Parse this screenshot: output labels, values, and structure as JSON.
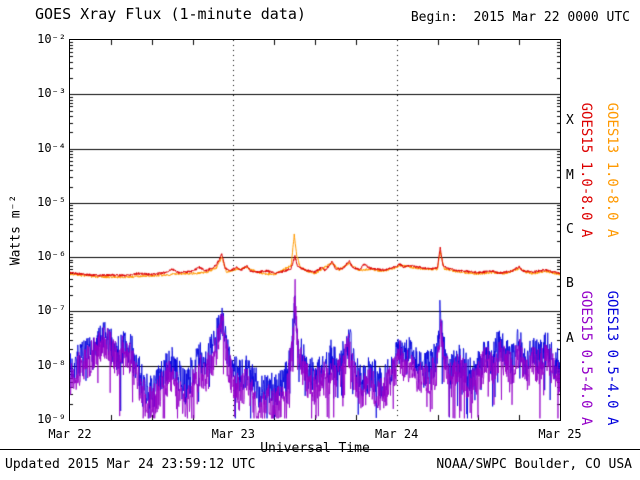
{
  "header": {
    "title": "GOES Xray Flux (1-minute data)",
    "begin": "Begin:  2015 Mar 22 0000 UTC"
  },
  "footer": {
    "updated": "Updated 2015 Mar 24 23:59:12 UTC",
    "source": "NOAA/SWPC Boulder, CO USA"
  },
  "chart_data": {
    "type": "line",
    "title": "GOES Xray Flux (1-minute data)",
    "xlabel": "Universal Time",
    "ylabel": "Watts m⁻²",
    "x_hours_range": [
      0,
      72
    ],
    "y_log_range": [
      -9,
      -2
    ],
    "grid": {
      "horizontal": "solid",
      "vertical": "dotted"
    },
    "x_ticks": [
      {
        "hours": 0,
        "label": "Mar 22",
        "dashed": false
      },
      {
        "hours": 24,
        "label": "Mar 23",
        "dashed": true
      },
      {
        "hours": 48,
        "label": "Mar 24",
        "dashed": true
      },
      {
        "hours": 72,
        "label": "Mar 25",
        "dashed": false
      }
    ],
    "y_ticks": [
      {
        "log": -2,
        "label": "10⁻²"
      },
      {
        "log": -3,
        "label": "10⁻³"
      },
      {
        "log": -4,
        "label": "10⁻⁴"
      },
      {
        "log": -5,
        "label": "10⁻⁵"
      },
      {
        "log": -6,
        "label": "10⁻⁶"
      },
      {
        "log": -7,
        "label": "10⁻⁷"
      },
      {
        "log": -8,
        "label": "10⁻⁸"
      },
      {
        "log": -9,
        "label": "10⁻⁹"
      }
    ],
    "flare_classes": [
      {
        "label": "X",
        "log_center": -3.5
      },
      {
        "label": "M",
        "log_center": -4.5
      },
      {
        "label": "C",
        "log_center": -5.5
      },
      {
        "label": "B",
        "log_center": -6.5
      },
      {
        "label": "A",
        "log_center": -7.5
      }
    ],
    "legend": [
      {
        "label": "GOES15 1.0-8.0 A",
        "color": "#dd0000",
        "col": 0,
        "row": 0
      },
      {
        "label": "GOES13 1.0-8.0 A",
        "color": "#ff9900",
        "col": 1,
        "row": 0
      },
      {
        "label": "GOES15 0.5-4.0 A",
        "color": "#9400c8",
        "col": 0,
        "row": 1
      },
      {
        "label": "GOES13 0.5-4.0 A",
        "color": "#0000dd",
        "col": 1,
        "row": 1
      }
    ],
    "series": [
      {
        "name": "GOES13 0.5-4.0 A",
        "color": "#0000dd",
        "seed": 7,
        "noise": 0.33,
        "dip": 0.05,
        "width": 0.8,
        "points": [
          [
            0,
            8e-09
          ],
          [
            1,
            1.2e-08
          ],
          [
            2,
            1.4e-08
          ],
          [
            3,
            1.6e-08
          ],
          [
            4,
            2.2e-08
          ],
          [
            5,
            3.2e-08
          ],
          [
            6,
            2.4e-08
          ],
          [
            7,
            1.6e-08
          ],
          [
            8,
            2.4e-08
          ],
          [
            9,
            1.8e-08
          ],
          [
            10,
            8e-09
          ],
          [
            11,
            4e-09
          ],
          [
            12,
            3e-09
          ],
          [
            13,
            5e-09
          ],
          [
            14,
            8e-09
          ],
          [
            15,
            1.1e-08
          ],
          [
            16,
            6e-09
          ],
          [
            17,
            4e-09
          ],
          [
            18,
            8e-09
          ],
          [
            19,
            1.4e-08
          ],
          [
            20,
            1.2e-08
          ],
          [
            21,
            2e-08
          ],
          [
            21.8,
            4.5e-08
          ],
          [
            22.3,
            9e-08
          ],
          [
            22.8,
            3e-08
          ],
          [
            23.5,
            1.2e-08
          ],
          [
            24,
            8e-09
          ],
          [
            25,
            6e-09
          ],
          [
            26,
            9e-09
          ],
          [
            27,
            5e-09
          ],
          [
            28,
            3.5e-09
          ],
          [
            29,
            4.5e-09
          ],
          [
            30,
            3.5e-09
          ],
          [
            31,
            4.5e-09
          ],
          [
            32,
            6e-09
          ],
          [
            32.9,
            6e-08
          ],
          [
            33.05,
            1.4e-07
          ],
          [
            33.4,
            3e-08
          ],
          [
            34,
            1.5e-08
          ],
          [
            35,
            8e-09
          ],
          [
            36,
            6e-09
          ],
          [
            37,
            1e-08
          ],
          [
            38,
            8e-09
          ],
          [
            38.5,
            1.8e-08
          ],
          [
            39,
            1e-08
          ],
          [
            40,
            1.4e-08
          ],
          [
            41,
            3e-08
          ],
          [
            41.5,
            1.4e-08
          ],
          [
            42,
            8e-09
          ],
          [
            43,
            5e-09
          ],
          [
            44,
            7e-09
          ],
          [
            45,
            6e-09
          ],
          [
            46,
            5e-09
          ],
          [
            47,
            8e-09
          ],
          [
            48,
            1.4e-08
          ],
          [
            48.5,
            2.4e-08
          ],
          [
            49,
            1.2e-08
          ],
          [
            50,
            1.8e-08
          ],
          [
            51,
            1e-08
          ],
          [
            52,
            8e-09
          ],
          [
            53,
            1e-08
          ],
          [
            54,
            1.6e-08
          ],
          [
            54.4,
            1.1e-07
          ],
          [
            54.8,
            3e-08
          ],
          [
            55.5,
            1.2e-08
          ],
          [
            56,
            8e-09
          ],
          [
            57,
            1.4e-08
          ],
          [
            58,
            1e-08
          ],
          [
            59,
            6e-09
          ],
          [
            60,
            1e-08
          ],
          [
            61,
            1.8e-08
          ],
          [
            62,
            1.4e-08
          ],
          [
            63,
            2.4e-08
          ],
          [
            64,
            1.8e-08
          ],
          [
            65,
            1.2e-08
          ],
          [
            66,
            2.8e-08
          ],
          [
            66.5,
            1.4e-08
          ],
          [
            67,
            1e-08
          ],
          [
            68,
            1.8e-08
          ],
          [
            69,
            1.4e-08
          ],
          [
            70,
            2.2e-08
          ],
          [
            71,
            1.2e-08
          ],
          [
            72,
            9e-09
          ]
        ]
      },
      {
        "name": "GOES15 0.5-4.0 A",
        "color": "#9400c8",
        "seed": 13,
        "noise": 0.33,
        "dip": 0.07,
        "width": 0.8,
        "points": [
          [
            0,
            6e-09
          ],
          [
            2,
            1e-08
          ],
          [
            4,
            1.8e-08
          ],
          [
            5,
            3e-08
          ],
          [
            6,
            2e-08
          ],
          [
            7,
            1.2e-08
          ],
          [
            8,
            2e-08
          ],
          [
            9,
            1.2e-08
          ],
          [
            10,
            5e-09
          ],
          [
            11,
            2.5e-09
          ],
          [
            12,
            2e-09
          ],
          [
            13,
            3e-09
          ],
          [
            14,
            5e-09
          ],
          [
            15,
            7e-09
          ],
          [
            16,
            3e-09
          ],
          [
            17,
            2e-09
          ],
          [
            18,
            4e-09
          ],
          [
            19,
            8e-09
          ],
          [
            20,
            7e-09
          ],
          [
            21,
            1.2e-08
          ],
          [
            21.8,
            3e-08
          ],
          [
            22.3,
            6e-08
          ],
          [
            22.8,
            2e-08
          ],
          [
            23.5,
            8e-09
          ],
          [
            24,
            5e-09
          ],
          [
            25,
            3e-09
          ],
          [
            26,
            5e-09
          ],
          [
            27,
            2.5e-09
          ],
          [
            28,
            1.8e-09
          ],
          [
            29,
            2.2e-09
          ],
          [
            30,
            1.8e-09
          ],
          [
            31,
            2.2e-09
          ],
          [
            32,
            3.5e-09
          ],
          [
            32.8,
            4e-08
          ],
          [
            33.05,
            2.8e-07
          ],
          [
            33.3,
            5e-08
          ],
          [
            33.8,
            1.5e-08
          ],
          [
            34,
            1e-08
          ],
          [
            35,
            5e-09
          ],
          [
            36,
            4e-09
          ],
          [
            37,
            6e-09
          ],
          [
            38,
            5e-09
          ],
          [
            38.5,
            1.2e-08
          ],
          [
            39,
            6e-09
          ],
          [
            40,
            9e-09
          ],
          [
            41,
            2e-08
          ],
          [
            41.5,
            9e-09
          ],
          [
            42,
            5e-09
          ],
          [
            43,
            3e-09
          ],
          [
            44,
            5e-09
          ],
          [
            45,
            3.5e-09
          ],
          [
            46,
            3e-09
          ],
          [
            47,
            5e-09
          ],
          [
            48,
            9e-09
          ],
          [
            48.5,
            1.5e-08
          ],
          [
            49,
            8e-09
          ],
          [
            50,
            1.2e-08
          ],
          [
            51,
            6e-09
          ],
          [
            52,
            5e-09
          ],
          [
            53,
            6e-09
          ],
          [
            54,
            9e-09
          ],
          [
            54.4,
            7e-08
          ],
          [
            54.8,
            2e-08
          ],
          [
            55.5,
            8e-09
          ],
          [
            56,
            5e-09
          ],
          [
            57,
            9e-09
          ],
          [
            58,
            6e-09
          ],
          [
            59,
            4e-09
          ],
          [
            60,
            6e-09
          ],
          [
            61,
            1.2e-08
          ],
          [
            62,
            9e-09
          ],
          [
            63,
            1.5e-08
          ],
          [
            64,
            1.1e-08
          ],
          [
            65,
            8e-09
          ],
          [
            66,
            2e-08
          ],
          [
            66.5,
            9e-09
          ],
          [
            67,
            6e-09
          ],
          [
            68,
            1.2e-08
          ],
          [
            69,
            9e-09
          ],
          [
            70,
            1.5e-08
          ],
          [
            71,
            8e-09
          ],
          [
            72,
            5e-09
          ]
        ]
      },
      {
        "name": "GOES13 1.0-8.0 A",
        "color": "#ff9900",
        "seed": 3,
        "noise": 0.022,
        "dip": 0,
        "width": 1,
        "points": [
          [
            0,
            4.9e-07
          ],
          [
            4,
            4.3e-07
          ],
          [
            8,
            4.3e-07
          ],
          [
            12,
            4.5e-07
          ],
          [
            16,
            4.9e-07
          ],
          [
            20,
            5.2e-07
          ],
          [
            21.5,
            6.4e-07
          ],
          [
            22.3,
            1e-06
          ],
          [
            23,
            5.3e-07
          ],
          [
            24.5,
            6e-07
          ],
          [
            26,
            6.4e-07
          ],
          [
            28,
            5e-07
          ],
          [
            30,
            4.8e-07
          ],
          [
            32.5,
            7e-07
          ],
          [
            32.95,
            2.6e-06
          ],
          [
            33.3,
            1.1e-06
          ],
          [
            33.8,
            6.6e-07
          ],
          [
            35,
            5.4e-07
          ],
          [
            36,
            5e-07
          ],
          [
            38.5,
            7.8e-07
          ],
          [
            39.5,
            5.8e-07
          ],
          [
            41,
            7.8e-07
          ],
          [
            42.5,
            5.7e-07
          ],
          [
            44,
            6e-07
          ],
          [
            46,
            5.5e-07
          ],
          [
            48,
            6.4e-07
          ],
          [
            48.5,
            7e-07
          ],
          [
            50,
            6.6e-07
          ],
          [
            52,
            6e-07
          ],
          [
            54,
            6e-07
          ],
          [
            54.4,
            1.3e-06
          ],
          [
            55,
            6e-07
          ],
          [
            56.5,
            5.5e-07
          ],
          [
            58,
            5.2e-07
          ],
          [
            60,
            4.9e-07
          ],
          [
            62,
            5.2e-07
          ],
          [
            64,
            5e-07
          ],
          [
            66,
            6.2e-07
          ],
          [
            67,
            5.3e-07
          ],
          [
            68,
            5e-07
          ],
          [
            70,
            5.5e-07
          ],
          [
            72,
            4.8e-07
          ]
        ]
      },
      {
        "name": "GOES15 1.0-8.0 A",
        "color": "#dd0000",
        "seed": 5,
        "noise": 0.022,
        "dip": 0,
        "width": 1,
        "points": [
          [
            0,
            5.2e-07
          ],
          [
            2,
            4.8e-07
          ],
          [
            4,
            4.6e-07
          ],
          [
            6,
            4.7e-07
          ],
          [
            8,
            4.6e-07
          ],
          [
            10,
            5e-07
          ],
          [
            12,
            4.8e-07
          ],
          [
            14,
            5.2e-07
          ],
          [
            15,
            6e-07
          ],
          [
            16,
            5.2e-07
          ],
          [
            18,
            5.5e-07
          ],
          [
            19,
            6.5e-07
          ],
          [
            20,
            5.6e-07
          ],
          [
            21.5,
            7e-07
          ],
          [
            22.3,
            1.15e-06
          ],
          [
            22.8,
            6.2e-07
          ],
          [
            23.5,
            5.6e-07
          ],
          [
            24.5,
            6.5e-07
          ],
          [
            25,
            5.6e-07
          ],
          [
            26,
            7e-07
          ],
          [
            26.5,
            5.6e-07
          ],
          [
            27.5,
            5.3e-07
          ],
          [
            29,
            5.6e-07
          ],
          [
            30,
            5.1e-07
          ],
          [
            31,
            5.3e-07
          ],
          [
            32.5,
            6.2e-07
          ],
          [
            33.05,
            1.05e-06
          ],
          [
            33.4,
            7e-07
          ],
          [
            34,
            6.2e-07
          ],
          [
            35,
            5.6e-07
          ],
          [
            36,
            5.3e-07
          ],
          [
            37,
            6.5e-07
          ],
          [
            37.5,
            5.6e-07
          ],
          [
            38.5,
            8.5e-07
          ],
          [
            39,
            6.2e-07
          ],
          [
            40,
            6e-07
          ],
          [
            41,
            8.5e-07
          ],
          [
            41.5,
            6.5e-07
          ],
          [
            42.5,
            6e-07
          ],
          [
            43.3,
            7.5e-07
          ],
          [
            44,
            6.3e-07
          ],
          [
            45,
            6e-07
          ],
          [
            46,
            5.8e-07
          ],
          [
            47,
            6.2e-07
          ],
          [
            48,
            6.8e-07
          ],
          [
            48.5,
            7.5e-07
          ],
          [
            49,
            6.6e-07
          ],
          [
            50,
            7e-07
          ],
          [
            51,
            6.6e-07
          ],
          [
            52,
            6.3e-07
          ],
          [
            53,
            6e-07
          ],
          [
            54,
            6.4e-07
          ],
          [
            54.4,
            1.5e-06
          ],
          [
            54.8,
            7e-07
          ],
          [
            55.5,
            6.2e-07
          ],
          [
            56.5,
            5.8e-07
          ],
          [
            58,
            5.5e-07
          ],
          [
            60,
            5.2e-07
          ],
          [
            62,
            5.5e-07
          ],
          [
            63,
            5.1e-07
          ],
          [
            64,
            5.3e-07
          ],
          [
            65,
            5.6e-07
          ],
          [
            66,
            6.6e-07
          ],
          [
            66.5,
            5.6e-07
          ],
          [
            68,
            5.3e-07
          ],
          [
            69,
            5.6e-07
          ],
          [
            70,
            5.8e-07
          ],
          [
            71,
            5.3e-07
          ],
          [
            72,
            5.1e-07
          ]
        ]
      }
    ]
  }
}
